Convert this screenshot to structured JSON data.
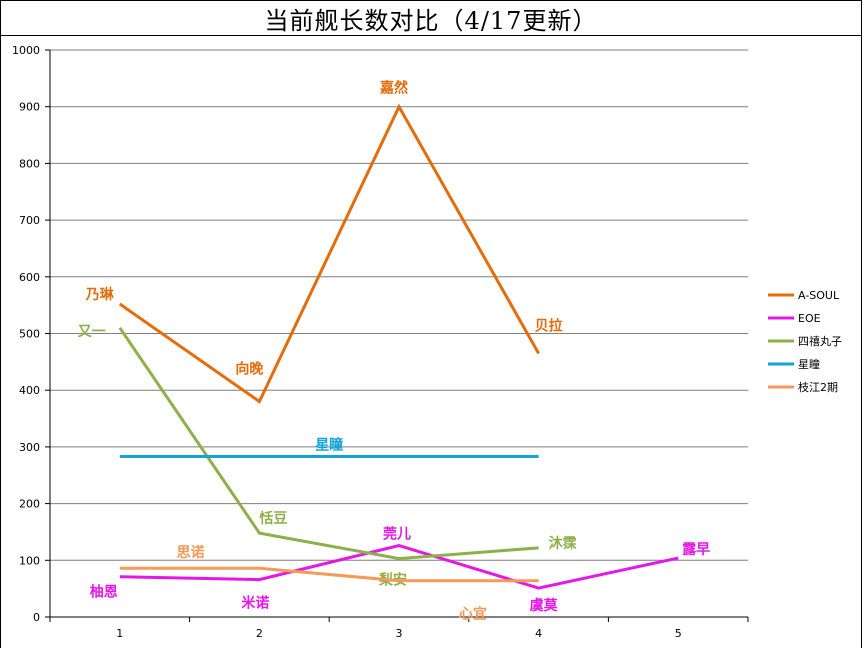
{
  "title": "当前舰长数对比（4/17更新）",
  "chart_data": {
    "type": "line",
    "x": [
      1,
      2,
      3,
      4,
      5
    ],
    "ylim": [
      0,
      1000
    ],
    "yticks": [
      0,
      100,
      200,
      300,
      400,
      500,
      600,
      700,
      800,
      900,
      1000
    ],
    "grid": true,
    "legend_position": "right",
    "series": [
      {
        "name": "A-SOUL",
        "color": "#e46c0a",
        "points": [
          {
            "x": 1,
            "y": 552,
            "label": "乃琳"
          },
          {
            "x": 2,
            "y": 380,
            "label": "向晚"
          },
          {
            "x": 3,
            "y": 900,
            "label": "嘉然"
          },
          {
            "x": 4,
            "y": 465,
            "label": "贝拉"
          }
        ]
      },
      {
        "name": "EOE",
        "color": "#e617e6",
        "points": [
          {
            "x": 1,
            "y": 71,
            "label": "柚恩"
          },
          {
            "x": 2,
            "y": 66,
            "label": "米诺"
          },
          {
            "x": 3,
            "y": 126,
            "label": "莞儿"
          },
          {
            "x": 4,
            "y": 51,
            "label": "虞莫"
          },
          {
            "x": 5,
            "y": 104,
            "label": "露早"
          }
        ]
      },
      {
        "name": "四禧丸子",
        "color": "#8db04a",
        "points": [
          {
            "x": 1,
            "y": 510,
            "label": "又一"
          },
          {
            "x": 2,
            "y": 148,
            "label": "恬豆"
          },
          {
            "x": 3,
            "y": 103,
            "label": "梨安"
          },
          {
            "x": 4,
            "y": 122,
            "label": "沐霂"
          }
        ]
      },
      {
        "name": "星瞳",
        "color": "#14a5d8",
        "points": [
          {
            "x": 1,
            "y": 283,
            "label": ""
          },
          {
            "x": 2.5,
            "y": 283,
            "label": "星瞳"
          },
          {
            "x": 4,
            "y": 283,
            "label": ""
          }
        ]
      },
      {
        "name": "枝江2期",
        "color": "#f59a58",
        "points": [
          {
            "x": 1,
            "y": 86,
            "label": ""
          },
          {
            "x": 1.5,
            "y": 86,
            "label": "思诺"
          },
          {
            "x": 2,
            "y": 86,
            "label": ""
          },
          {
            "x": 3,
            "y": 64,
            "label": ""
          },
          {
            "x": 3.4,
            "y": 64,
            "label": "心宜"
          },
          {
            "x": 4,
            "y": 64,
            "label": ""
          }
        ]
      }
    ]
  }
}
